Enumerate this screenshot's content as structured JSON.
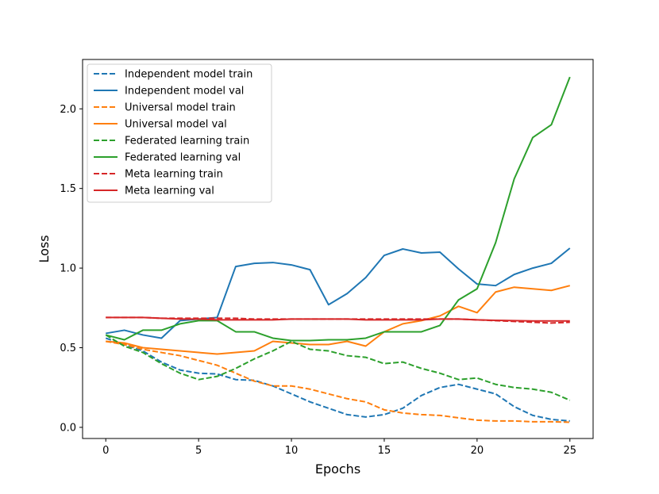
{
  "chart_data": {
    "type": "line",
    "title": "",
    "xlabel": "Epochs",
    "ylabel": "Loss",
    "xlim": [
      -1.25,
      26.25
    ],
    "ylim": [
      -0.07,
      2.31
    ],
    "xticks": [
      0,
      5,
      10,
      15,
      20,
      25
    ],
    "yticks": [
      0.0,
      0.5,
      1.0,
      1.5,
      2.0
    ],
    "grid": false,
    "legend_position": "top-left",
    "x": [
      0,
      1,
      2,
      3,
      4,
      5,
      6,
      7,
      8,
      9,
      10,
      11,
      12,
      13,
      14,
      15,
      16,
      17,
      18,
      19,
      20,
      21,
      22,
      23,
      24,
      25
    ],
    "series": [
      {
        "name": "Independent model train",
        "color": "#1f77b4",
        "linestyle": "dashed",
        "values": [
          0.56,
          0.52,
          0.48,
          0.41,
          0.36,
          0.34,
          0.335,
          0.3,
          0.295,
          0.26,
          0.21,
          0.16,
          0.12,
          0.08,
          0.065,
          0.08,
          0.12,
          0.2,
          0.25,
          0.27,
          0.24,
          0.21,
          0.13,
          0.075,
          0.05,
          0.04
        ]
      },
      {
        "name": "Independent model val",
        "color": "#1f77b4",
        "linestyle": "solid",
        "values": [
          0.59,
          0.61,
          0.58,
          0.56,
          0.67,
          0.68,
          0.69,
          1.01,
          1.03,
          1.035,
          1.02,
          0.99,
          0.77,
          0.84,
          0.94,
          1.08,
          1.12,
          1.095,
          1.1,
          0.995,
          0.9,
          0.89,
          0.96,
          1.0,
          1.03,
          1.125
        ]
      },
      {
        "name": "Universal model train",
        "color": "#ff7f0e",
        "linestyle": "dashed",
        "values": [
          0.54,
          0.52,
          0.49,
          0.47,
          0.45,
          0.42,
          0.39,
          0.34,
          0.29,
          0.26,
          0.26,
          0.24,
          0.21,
          0.18,
          0.16,
          0.11,
          0.09,
          0.08,
          0.075,
          0.06,
          0.045,
          0.04,
          0.04,
          0.035,
          0.035,
          0.032
        ]
      },
      {
        "name": "Universal model val",
        "color": "#ff7f0e",
        "linestyle": "solid",
        "values": [
          0.54,
          0.53,
          0.5,
          0.49,
          0.48,
          0.47,
          0.46,
          0.47,
          0.48,
          0.54,
          0.53,
          0.52,
          0.52,
          0.54,
          0.51,
          0.6,
          0.65,
          0.67,
          0.7,
          0.76,
          0.72,
          0.85,
          0.88,
          0.87,
          0.86,
          0.89
        ]
      },
      {
        "name": "Federated learning train",
        "color": "#2ca02c",
        "linestyle": "dashed",
        "values": [
          0.58,
          0.51,
          0.47,
          0.4,
          0.34,
          0.3,
          0.32,
          0.37,
          0.43,
          0.48,
          0.54,
          0.49,
          0.48,
          0.45,
          0.44,
          0.4,
          0.41,
          0.37,
          0.34,
          0.3,
          0.31,
          0.27,
          0.25,
          0.24,
          0.22,
          0.17
        ]
      },
      {
        "name": "Federated learning val",
        "color": "#2ca02c",
        "linestyle": "solid",
        "values": [
          0.58,
          0.55,
          0.61,
          0.61,
          0.65,
          0.67,
          0.67,
          0.6,
          0.6,
          0.56,
          0.545,
          0.545,
          0.55,
          0.55,
          0.56,
          0.6,
          0.6,
          0.6,
          0.64,
          0.8,
          0.87,
          1.16,
          1.56,
          1.82,
          1.9,
          2.2
        ]
      },
      {
        "name": "Meta learning train",
        "color": "#d62728",
        "linestyle": "dashed",
        "values": [
          0.69,
          0.69,
          0.69,
          0.685,
          0.685,
          0.685,
          0.685,
          0.685,
          0.68,
          0.68,
          0.68,
          0.68,
          0.68,
          0.68,
          0.68,
          0.68,
          0.68,
          0.68,
          0.68,
          0.68,
          0.675,
          0.67,
          0.665,
          0.66,
          0.655,
          0.66
        ]
      },
      {
        "name": "Meta learning val",
        "color": "#d62728",
        "linestyle": "solid",
        "values": [
          0.69,
          0.69,
          0.69,
          0.685,
          0.68,
          0.68,
          0.675,
          0.675,
          0.675,
          0.675,
          0.68,
          0.68,
          0.68,
          0.68,
          0.675,
          0.675,
          0.675,
          0.675,
          0.68,
          0.68,
          0.675,
          0.672,
          0.67,
          0.668,
          0.668,
          0.668
        ]
      }
    ]
  }
}
